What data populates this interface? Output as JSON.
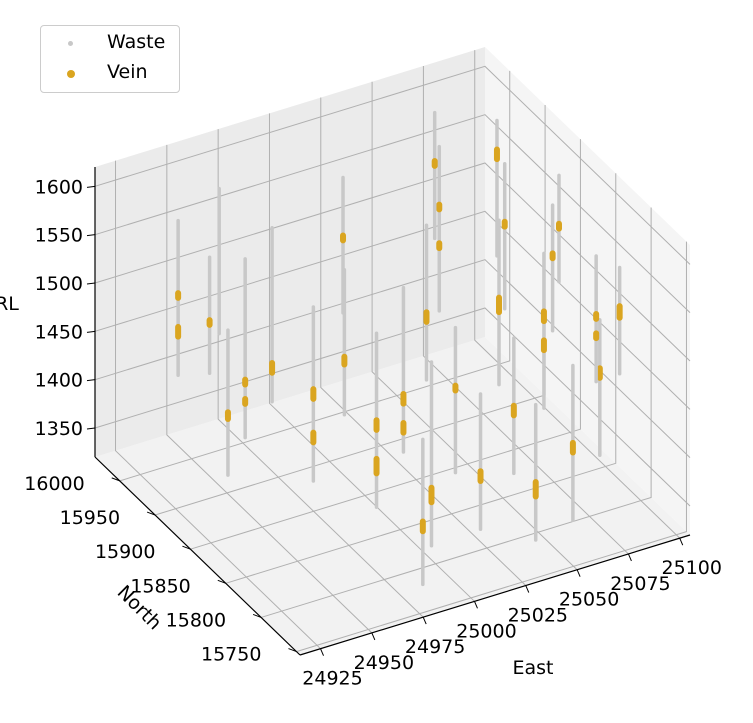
{
  "chart_data": {
    "type": "scatter",
    "projection": "3d",
    "title": "",
    "xlabel": "East",
    "ylabel": "North",
    "zlabel": "RL",
    "x_ticks": [
      24925,
      24950,
      24975,
      25000,
      25025,
      25050,
      25075,
      25100
    ],
    "y_ticks": [
      15750,
      15800,
      15850,
      15900,
      15950,
      16000
    ],
    "z_ticks": [
      1350,
      1400,
      1450,
      1500,
      1550,
      1600
    ],
    "xlim": [
      24915,
      25105
    ],
    "ylim": [
      15745,
      16035
    ],
    "zlim": [
      1320,
      1620
    ],
    "grid": true,
    "legend": {
      "placement": "top-left"
    },
    "series": [
      {
        "name": "Waste",
        "color": "#c8c8c8"
      },
      {
        "name": "Vein",
        "color": "#daa520"
      }
    ],
    "drillholes": [
      {
        "east": 24940,
        "north": 15990,
        "top": 1580,
        "bottom": 1420,
        "veins": [
          [
            1505,
            1500
          ],
          [
            1470,
            1460
          ]
        ]
      },
      {
        "east": 24945,
        "north": 15960,
        "top": 1560,
        "bottom": 1440,
        "veins": [
          [
            1495,
            1490
          ]
        ]
      },
      {
        "east": 24952,
        "north": 15930,
        "top": 1575,
        "bottom": 1390,
        "veins": [
          [
            1450,
            1445
          ],
          [
            1430,
            1425
          ]
        ]
      },
      {
        "east": 24935,
        "north": 15905,
        "top": 1530,
        "bottom": 1380,
        "veins": [
          [
            1445,
            1438
          ]
        ]
      },
      {
        "east": 24960,
        "north": 15990,
        "top": 1600,
        "bottom": 1450,
        "veins": []
      },
      {
        "east": 24968,
        "north": 15880,
        "top": 1550,
        "bottom": 1370,
        "veins": [
          [
            1465,
            1455
          ],
          [
            1420,
            1410
          ]
        ]
      },
      {
        "east": 24972,
        "north": 15950,
        "top": 1580,
        "bottom": 1400,
        "veins": [
          [
            1440,
            1430
          ]
        ]
      },
      {
        "east": 24985,
        "north": 15840,
        "top": 1540,
        "bottom": 1360,
        "veins": [
          [
            1450,
            1440
          ],
          [
            1410,
            1395
          ]
        ]
      },
      {
        "east": 24990,
        "north": 15900,
        "top": 1560,
        "bottom": 1410,
        "veins": [
          [
            1470,
            1462
          ]
        ]
      },
      {
        "east": 24998,
        "north": 15800,
        "top": 1530,
        "bottom": 1340,
        "veins": [
          [
            1400,
            1385
          ]
        ]
      },
      {
        "east": 25005,
        "north": 15860,
        "top": 1560,
        "bottom": 1390,
        "veins": [
          [
            1450,
            1440
          ],
          [
            1420,
            1410
          ]
        ]
      },
      {
        "east": 25015,
        "north": 15780,
        "top": 1500,
        "bottom": 1360,
        "veins": [
          [
            1420,
            1410
          ]
        ]
      },
      {
        "east": 25020,
        "north": 15830,
        "top": 1530,
        "bottom": 1380,
        "veins": [
          [
            1470,
            1465
          ]
        ]
      },
      {
        "east": 25030,
        "north": 15900,
        "top": 1580,
        "bottom": 1420,
        "veins": [
          [
            1490,
            1480
          ]
        ]
      },
      {
        "east": 25035,
        "north": 15760,
        "top": 1490,
        "bottom": 1350,
        "veins": [
          [
            1410,
            1395
          ]
        ]
      },
      {
        "east": 25045,
        "north": 15820,
        "top": 1510,
        "bottom": 1370,
        "veins": [
          [
            1440,
            1430
          ]
        ]
      },
      {
        "east": 25050,
        "north": 15940,
        "top": 1620,
        "bottom": 1450,
        "veins": [
          [
            1560,
            1555
          ],
          [
            1520,
            1515
          ]
        ]
      },
      {
        "east": 25055,
        "north": 15870,
        "top": 1590,
        "bottom": 1420,
        "veins": [
          [
            1510,
            1495
          ]
        ]
      },
      {
        "east": 25060,
        "north": 15780,
        "top": 1500,
        "bottom": 1340,
        "veins": [
          [
            1420,
            1410
          ]
        ]
      },
      {
        "east": 25065,
        "north": 15990,
        "top": 1610,
        "bottom": 1480,
        "veins": [
          [
            1560,
            1555
          ]
        ]
      },
      {
        "east": 25070,
        "north": 15850,
        "top": 1560,
        "bottom": 1400,
        "veins": [
          [
            1500,
            1490
          ],
          [
            1470,
            1460
          ]
        ]
      },
      {
        "east": 25075,
        "north": 15920,
        "top": 1600,
        "bottom": 1450,
        "veins": [
          [
            1540,
            1535
          ]
        ]
      },
      {
        "east": 25080,
        "north": 15800,
        "top": 1520,
        "bottom": 1380,
        "veins": [
          [
            1470,
            1460
          ]
        ]
      },
      {
        "east": 25085,
        "north": 15960,
        "top": 1610,
        "bottom": 1470,
        "veins": [
          [
            1580,
            1570
          ]
        ]
      },
      {
        "east": 25088,
        "north": 15890,
        "top": 1570,
        "bottom": 1440,
        "veins": [
          [
            1520,
            1515
          ]
        ]
      },
      {
        "east": 25092,
        "north": 15840,
        "top": 1550,
        "bottom": 1420,
        "veins": [
          [
            1490,
            1485
          ],
          [
            1470,
            1465
          ]
        ]
      },
      {
        "east": 25098,
        "north": 15910,
        "top": 1580,
        "bottom": 1470,
        "veins": [
          [
            1530,
            1525
          ]
        ]
      },
      {
        "east": 25100,
        "north": 15830,
        "top": 1540,
        "bottom": 1430,
        "veins": [
          [
            1500,
            1488
          ]
        ]
      },
      {
        "east": 25010,
        "north": 15960,
        "top": 1600,
        "bottom": 1460,
        "veins": [
          [
            1540,
            1535
          ]
        ]
      },
      {
        "east": 24980,
        "north": 15760,
        "top": 1490,
        "bottom": 1340,
        "veins": [
          [
            1405,
            1395
          ]
        ]
      }
    ]
  }
}
